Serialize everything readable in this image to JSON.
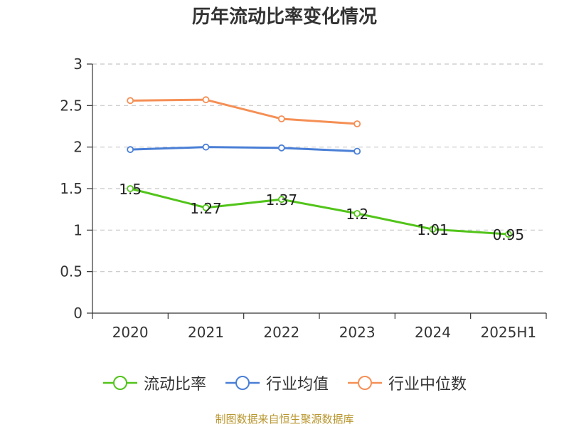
{
  "chart_data": {
    "type": "line",
    "title": "历年流动比率变化情况",
    "categories": [
      "2020",
      "2021",
      "2022",
      "2023",
      "2024",
      "2025H1"
    ],
    "ylim": [
      0,
      3
    ],
    "yticks": [
      "0",
      "0.5",
      "1",
      "1.5",
      "2",
      "2.5",
      "3"
    ],
    "grid": true,
    "legend_position": "bottom",
    "series": [
      {
        "name": "流动比率",
        "color": "#52c41a",
        "values": [
          1.5,
          1.27,
          1.37,
          1.2,
          1.01,
          0.95
        ],
        "labels": [
          "1.5",
          "1.27",
          "1.37",
          "1.2",
          "1.01",
          "0.95"
        ]
      },
      {
        "name": "行业均值",
        "color": "#4a7fd6",
        "values": [
          1.97,
          2.0,
          1.99,
          1.95,
          null,
          null
        ]
      },
      {
        "name": "行业中位数",
        "color": "#f58f55",
        "values": [
          2.56,
          2.57,
          2.34,
          2.28,
          null,
          null
        ]
      }
    ]
  },
  "source_note": "制图数据来自恒生聚源数据库"
}
